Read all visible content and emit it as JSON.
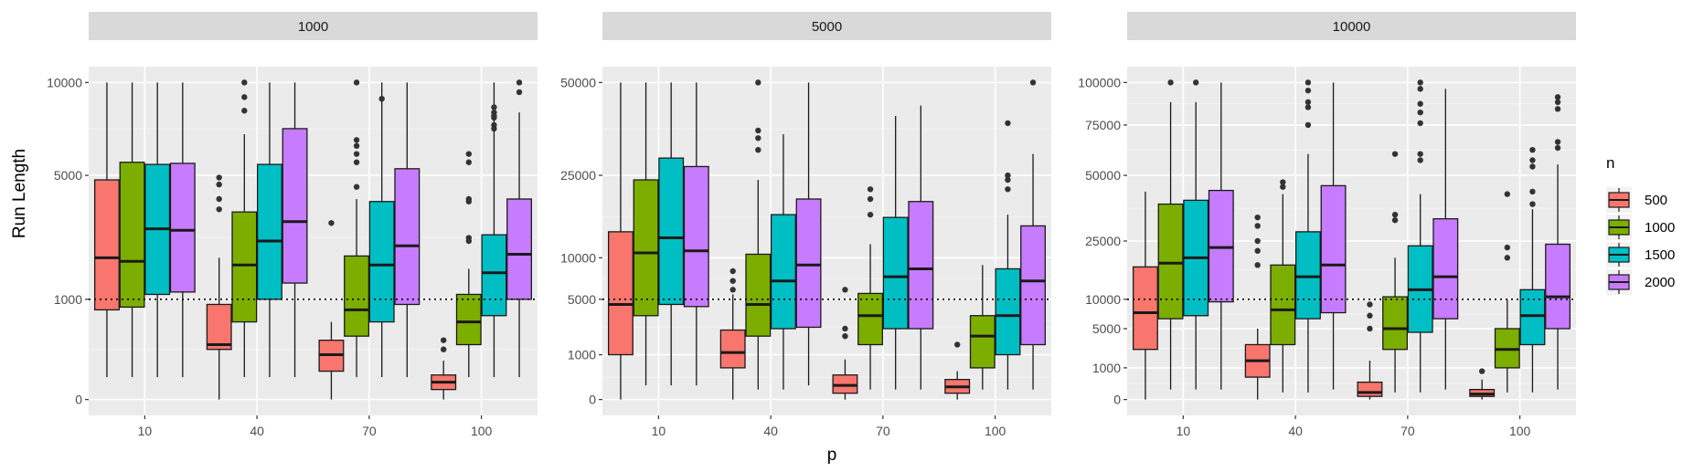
{
  "chart_data": {
    "type": "boxplot",
    "xlabel": "p",
    "ylabel": "Run Length",
    "categories": [
      "10",
      "40",
      "70",
      "100"
    ],
    "reference_line": {
      "style": "dotted",
      "note": "horizontal dotted line at the facet's in-control level"
    },
    "legend": {
      "title": "n",
      "position": "right",
      "entries": [
        {
          "label": "500",
          "color": "#F8766D"
        },
        {
          "label": "1000",
          "color": "#7CAE00"
        },
        {
          "label": "1500",
          "color": "#00BFC4"
        },
        {
          "label": "2000",
          "color": "#C77CFF"
        }
      ]
    },
    "facets": [
      {
        "title": "1000",
        "yaxis": {
          "ticks": [
            0,
            1000,
            5000,
            10000
          ],
          "tick_labels": [
            "0",
            "1000",
            "5000",
            "10000"
          ]
        },
        "reference": 1000,
        "boxes": [
          {
            "p": "10",
            "n": "500",
            "min": 50,
            "q1": 800,
            "median": 2000,
            "q3": 4800,
            "max": 10000,
            "outliers": []
          },
          {
            "p": "10",
            "n": "1000",
            "min": 50,
            "q1": 850,
            "median": 1900,
            "q3": 5600,
            "max": 10000,
            "outliers": []
          },
          {
            "p": "10",
            "n": "1500",
            "min": 50,
            "q1": 1100,
            "median": 2900,
            "q3": 5500,
            "max": 10000,
            "outliers": []
          },
          {
            "p": "10",
            "n": "2000",
            "min": 50,
            "q1": 1150,
            "median": 2850,
            "q3": 5550,
            "max": 10000,
            "outliers": []
          },
          {
            "p": "40",
            "n": "500",
            "min": 0,
            "q1": 250,
            "median": 300,
            "q3": 900,
            "max": 2000,
            "outliers": [
              4900,
              4600,
              4000,
              3600
            ]
          },
          {
            "p": "40",
            "n": "1000",
            "min": 50,
            "q1": 600,
            "median": 1800,
            "q3": 3500,
            "max": 7000,
            "outliers": [
              10000,
              9100,
              8300
            ]
          },
          {
            "p": "40",
            "n": "1500",
            "min": 50,
            "q1": 1000,
            "median": 2500,
            "q3": 5500,
            "max": 10000,
            "outliers": []
          },
          {
            "p": "40",
            "n": "2000",
            "min": 50,
            "q1": 1350,
            "median": 3150,
            "q3": 7300,
            "max": 10000,
            "outliers": []
          },
          {
            "p": "70",
            "n": "500",
            "min": 0,
            "q1": 80,
            "median": 200,
            "q3": 350,
            "max": 600,
            "outliers": [
              3100
            ]
          },
          {
            "p": "70",
            "n": "1000",
            "min": 50,
            "q1": 400,
            "median": 800,
            "q3": 2050,
            "max": 4000,
            "outliers": [
              10000,
              6700,
              6400,
              6000,
              5600,
              4500
            ]
          },
          {
            "p": "70",
            "n": "1500",
            "min": 50,
            "q1": 600,
            "median": 1800,
            "q3": 3900,
            "max": 10000,
            "outliers": [
              9000
            ]
          },
          {
            "p": "70",
            "n": "2000",
            "min": 50,
            "q1": 900,
            "median": 2350,
            "q3": 5300,
            "max": 10000,
            "outliers": []
          },
          {
            "p": "100",
            "n": "500",
            "min": 0,
            "q1": 10,
            "median": 30,
            "q3": 60,
            "max": 150,
            "outliers": [
              350,
              250
            ]
          },
          {
            "p": "100",
            "n": "1000",
            "min": 50,
            "q1": 300,
            "median": 600,
            "q3": 1100,
            "max": 1700,
            "outliers": [
              6000,
              5600,
              4000,
              3900,
              2600,
              2500
            ]
          },
          {
            "p": "100",
            "n": "1500",
            "min": 50,
            "q1": 700,
            "median": 1600,
            "q3": 2700,
            "max": 10000,
            "outliers": [
              8500,
              8200,
              8000,
              7900,
              7500,
              7300
            ]
          },
          {
            "p": "100",
            "n": "2000",
            "min": 50,
            "q1": 1000,
            "median": 2100,
            "q3": 4000,
            "max": 8200,
            "outliers": [
              10000,
              9400
            ]
          }
        ]
      },
      {
        "title": "5000",
        "yaxis": {
          "ticks": [
            0,
            1000,
            5000,
            10000,
            25000,
            50000
          ],
          "tick_labels": [
            "0",
            "1000",
            "5000",
            "10000",
            "25000",
            "50000"
          ]
        },
        "reference": 5000,
        "boxes": [
          {
            "p": "10",
            "n": "500",
            "min": 0,
            "q1": 1000,
            "median": 4500,
            "q3": 14000,
            "max": 50000,
            "outliers": []
          },
          {
            "p": "10",
            "n": "1000",
            "min": 100,
            "q1": 3500,
            "median": 10700,
            "q3": 24000,
            "max": 50000,
            "outliers": []
          },
          {
            "p": "10",
            "n": "1500",
            "min": 100,
            "q1": 4500,
            "median": 13000,
            "q3": 29000,
            "max": 50000,
            "outliers": []
          },
          {
            "p": "10",
            "n": "2000",
            "min": 100,
            "q1": 4300,
            "median": 11000,
            "q3": 27000,
            "max": 50000,
            "outliers": []
          },
          {
            "p": "40",
            "n": "500",
            "min": 0,
            "q1": 500,
            "median": 1100,
            "q3": 2400,
            "max": 5500,
            "outliers": [
              8200,
              7000,
              6000
            ]
          },
          {
            "p": "40",
            "n": "1000",
            "min": 50,
            "q1": 2000,
            "median": 4500,
            "q3": 10500,
            "max": 24000,
            "outliers": [
              50000,
              36000,
              34000,
              31000
            ]
          },
          {
            "p": "40",
            "n": "1500",
            "min": 50,
            "q1": 2500,
            "median": 7000,
            "q3": 17000,
            "max": 35000,
            "outliers": []
          },
          {
            "p": "40",
            "n": "2000",
            "min": 100,
            "q1": 2600,
            "median": 9000,
            "q3": 20000,
            "max": 50000,
            "outliers": []
          },
          {
            "p": "70",
            "n": "500",
            "min": 0,
            "q1": 20,
            "median": 100,
            "q3": 300,
            "max": 800,
            "outliers": [
              6000,
              2500,
              2000
            ]
          },
          {
            "p": "70",
            "n": "1000",
            "min": 50,
            "q1": 1500,
            "median": 3500,
            "q3": 5600,
            "max": 12000,
            "outliers": [
              22000,
              20000,
              17000
            ]
          },
          {
            "p": "70",
            "n": "1500",
            "min": 50,
            "q1": 2500,
            "median": 7500,
            "q3": 16500,
            "max": 40000,
            "outliers": []
          },
          {
            "p": "70",
            "n": "2000",
            "min": 50,
            "q1": 2500,
            "median": 8500,
            "q3": 19500,
            "max": 43000,
            "outliers": []
          },
          {
            "p": "100",
            "n": "500",
            "min": 0,
            "q1": 20,
            "median": 80,
            "q3": 200,
            "max": 400,
            "outliers": [
              1500
            ]
          },
          {
            "p": "100",
            "n": "1000",
            "min": 50,
            "q1": 500,
            "median": 2000,
            "q3": 3500,
            "max": 9000,
            "outliers": []
          },
          {
            "p": "100",
            "n": "1500",
            "min": 50,
            "q1": 1000,
            "median": 3500,
            "q3": 8500,
            "max": 17000,
            "outliers": [
              38000,
              25000,
              24000,
              22000
            ]
          },
          {
            "p": "100",
            "n": "2000",
            "min": 50,
            "q1": 1500,
            "median": 7000,
            "q3": 15000,
            "max": 30000,
            "outliers": [
              50000
            ]
          }
        ]
      },
      {
        "title": "10000",
        "yaxis": {
          "ticks": [
            0,
            1000,
            5000,
            10000,
            25000,
            50000,
            75000,
            100000
          ],
          "tick_labels": [
            "0",
            "1000",
            "5000",
            "10000",
            "25000",
            "50000",
            "75000",
            "100000"
          ]
        },
        "reference": 10000,
        "boxes": [
          {
            "p": "10",
            "n": "500",
            "min": 0,
            "q1": 2500,
            "median": 7500,
            "q3": 17500,
            "max": 43000,
            "outliers": []
          },
          {
            "p": "10",
            "n": "1000",
            "min": 100,
            "q1": 6500,
            "median": 18500,
            "q3": 38000,
            "max": 88000,
            "outliers": [
              100000
            ]
          },
          {
            "p": "10",
            "n": "1500",
            "min": 100,
            "q1": 7000,
            "median": 20000,
            "q3": 39500,
            "max": 88000,
            "outliers": [
              100000
            ]
          },
          {
            "p": "10",
            "n": "2000",
            "min": 100,
            "q1": 9500,
            "median": 23000,
            "q3": 43500,
            "max": 100000,
            "outliers": []
          },
          {
            "p": "40",
            "n": "500",
            "min": 0,
            "q1": 500,
            "median": 1500,
            "q3": 3000,
            "max": 5000,
            "outliers": [
              33000,
              30000,
              25000,
              22000,
              18000
            ]
          },
          {
            "p": "40",
            "n": "1000",
            "min": 50,
            "q1": 3000,
            "median": 8000,
            "q3": 18000,
            "max": 42000,
            "outliers": [
              47000,
              45000
            ]
          },
          {
            "p": "40",
            "n": "1500",
            "min": 50,
            "q1": 6500,
            "median": 15000,
            "q3": 28000,
            "max": 60000,
            "outliers": [
              100000,
              95000,
              88000,
              85000,
              75000
            ]
          },
          {
            "p": "40",
            "n": "2000",
            "min": 100,
            "q1": 7500,
            "median": 18000,
            "q3": 45500,
            "max": 100000,
            "outliers": []
          },
          {
            "p": "70",
            "n": "500",
            "min": 0,
            "q1": 10,
            "median": 50,
            "q3": 300,
            "max": 1500,
            "outliers": [
              9000,
              7000,
              5000
            ]
          },
          {
            "p": "70",
            "n": "1000",
            "min": 50,
            "q1": 2500,
            "median": 5000,
            "q3": 10500,
            "max": 20000,
            "outliers": [
              60000,
              34000,
              32000
            ]
          },
          {
            "p": "70",
            "n": "1500",
            "min": 50,
            "q1": 4500,
            "median": 12000,
            "q3": 23500,
            "max": 42000,
            "outliers": [
              100000,
              96000,
              87000,
              82000,
              76000,
              60000,
              57000
            ]
          },
          {
            "p": "70",
            "n": "2000",
            "min": 100,
            "q1": 6500,
            "median": 15000,
            "q3": 32500,
            "max": 96000,
            "outliers": []
          },
          {
            "p": "100",
            "n": "500",
            "min": 0,
            "q1": 10,
            "median": 30,
            "q3": 100,
            "max": 400,
            "outliers": [
              800
            ]
          },
          {
            "p": "100",
            "n": "1000",
            "min": 50,
            "q1": 1000,
            "median": 2500,
            "q3": 5000,
            "max": 10000,
            "outliers": [
              42000,
              23000,
              20000
            ]
          },
          {
            "p": "100",
            "n": "1500",
            "min": 50,
            "q1": 3000,
            "median": 7000,
            "q3": 12000,
            "max": 36000,
            "outliers": [
              62000,
              57000,
              54000,
              43000,
              38000
            ]
          },
          {
            "p": "100",
            "n": "2000",
            "min": 100,
            "q1": 5000,
            "median": 10500,
            "q3": 24000,
            "max": 55000,
            "outliers": [
              91000,
              88000,
              84000,
              66000,
              63000
            ]
          }
        ]
      }
    ]
  }
}
